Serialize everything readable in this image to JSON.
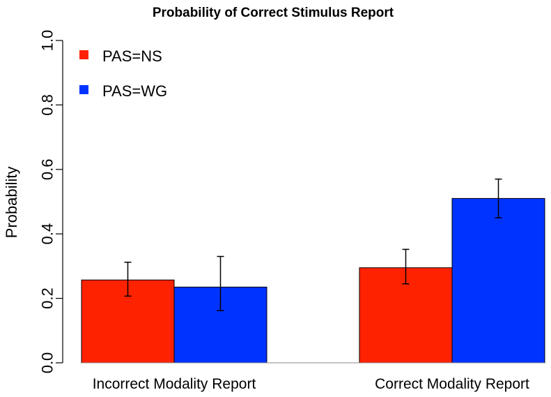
{
  "chart_data": {
    "type": "bar",
    "title": "Probability of Correct Stimulus Report",
    "xlabel": "",
    "ylabel": "Probability",
    "ylim": [
      0,
      1
    ],
    "yticks": [
      0.0,
      0.2,
      0.4,
      0.6,
      0.8,
      1.0
    ],
    "ytick_labels": [
      "0.0",
      "0.2",
      "0.4",
      "0.6",
      "0.8",
      "1.0"
    ],
    "categories": [
      "Incorrect Modality Report",
      "Correct Modality Report"
    ],
    "series": [
      {
        "name": "PAS=NS",
        "color": "#ff2200",
        "values": [
          0.257,
          0.295
        ],
        "err_low": [
          0.207,
          0.245
        ],
        "err_high": [
          0.312,
          0.352
        ]
      },
      {
        "name": "PAS=WG",
        "color": "#0033ff",
        "values": [
          0.235,
          0.51
        ],
        "err_low": [
          0.162,
          0.45
        ],
        "err_high": [
          0.33,
          0.57
        ]
      }
    ],
    "legend": {
      "position": "top-left"
    }
  }
}
